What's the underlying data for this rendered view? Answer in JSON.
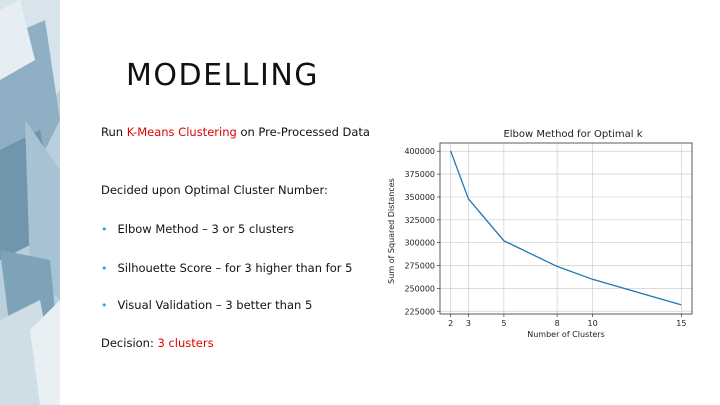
{
  "slide": {
    "title": "MODELLING",
    "line1": {
      "pre": "Run ",
      "highlight": "K-Means Clustering",
      "post": " on Pre-Processed Data"
    },
    "line2": "Decided upon Optimal Cluster Number:",
    "bullets": [
      "Elbow Method – 3 or 5 clusters",
      "Silhouette Score  – for 3 higher than for 5",
      "Visual Validation – 3 better than 5"
    ],
    "decision": {
      "label": "Decision: ",
      "value": "3 clusters"
    },
    "colors": {
      "accent": "#e00000",
      "bullet": "#2aa7d8",
      "line": "#1f77b4"
    }
  },
  "chart_data": {
    "type": "line",
    "title": "Elbow Method for Optimal k",
    "xlabel": "Number of Clusters",
    "ylabel": "Sum of Squared Distances",
    "x": [
      2,
      3,
      5,
      8,
      10,
      15
    ],
    "y": [
      400500,
      348000,
      302000,
      274000,
      260000,
      232000
    ],
    "xticks": [
      2,
      3,
      5,
      8,
      10,
      15
    ],
    "yticks": [
      225000,
      250000,
      275000,
      300000,
      325000,
      350000,
      375000,
      400000
    ],
    "xlim": [
      1.4,
      15.6
    ],
    "ylim": [
      222000,
      409000
    ],
    "grid": true
  }
}
